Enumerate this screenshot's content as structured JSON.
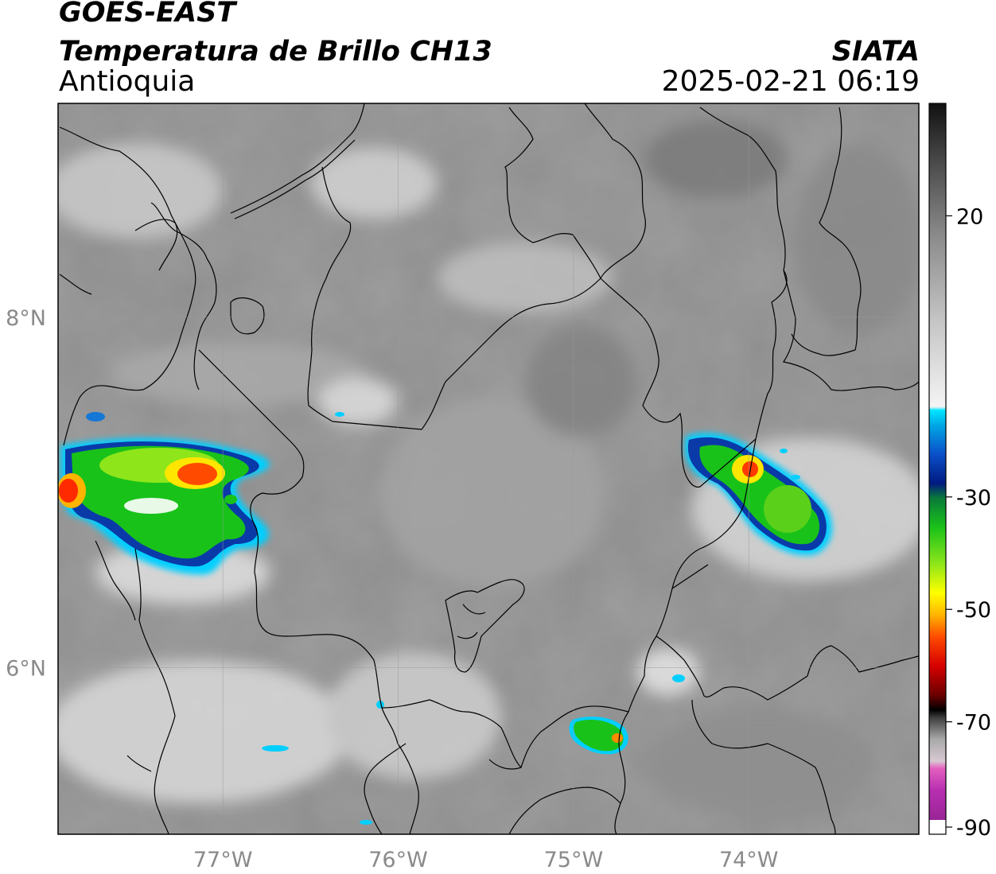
{
  "header": {
    "satellite": "GOES-EAST",
    "product": "Temperatura de Brillo CH13",
    "organization": "SIATA",
    "region": "Antioquia",
    "datetime": "2025-02-21 06:19"
  },
  "map": {
    "longitude_ticks": [
      {
        "value": -77,
        "label": "77°W"
      },
      {
        "value": -76,
        "label": "76°W"
      },
      {
        "value": -75,
        "label": "75°W"
      },
      {
        "value": -74,
        "label": "74°W"
      }
    ],
    "latitude_ticks": [
      {
        "value": 8,
        "label": "8°N"
      },
      {
        "value": 6,
        "label": "6°N"
      }
    ],
    "extent": {
      "lon_min": -77.94,
      "lon_max": -73.03,
      "lat_min": 5.05,
      "lat_max": 9.22
    },
    "gridlines": true
  },
  "colorbar": {
    "ticks": [
      {
        "value": 20,
        "label": "20"
      },
      {
        "value": -30,
        "label": "-30"
      },
      {
        "value": -50,
        "label": "-50"
      },
      {
        "value": -70,
        "label": "-70"
      },
      {
        "value": -90,
        "label": "-90"
      }
    ],
    "range": [
      -90,
      40
    ],
    "colors": {
      "magenta": "#b72fb0",
      "pink": "#e45fbf",
      "black": "#000000",
      "dark_red": "#8a0000",
      "red": "#ff0000",
      "orange": "#ff9900",
      "yellow": "#ffff00",
      "green": "#19c219",
      "dark_blue": "#001a80",
      "cyan": "#00e5ff",
      "gray_dark": "#333333",
      "gray_white": "#f4f4f4"
    }
  }
}
